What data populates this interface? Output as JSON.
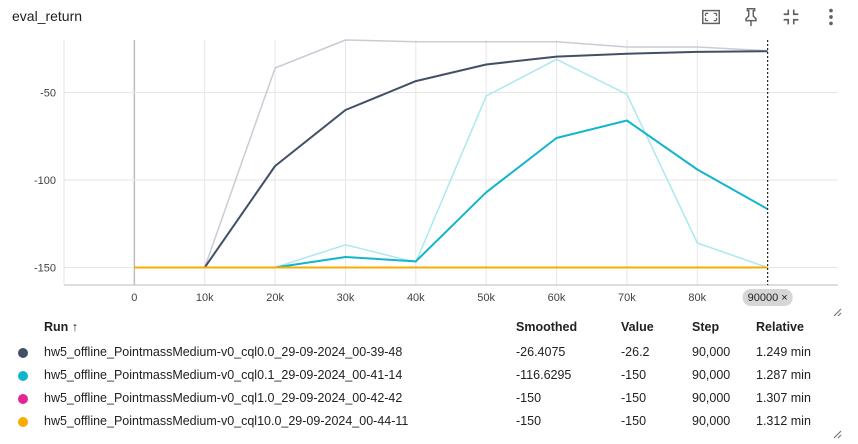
{
  "panel": {
    "title": "eval_return"
  },
  "toolbar": {
    "items": [
      {
        "icon": "fit-domain-icon"
      },
      {
        "icon": "pin-icon"
      },
      {
        "icon": "fullscreen-exit-icon"
      },
      {
        "icon": "more-vert-icon"
      }
    ]
  },
  "chart_data": {
    "type": "line",
    "x_ticks": [
      "0",
      "10k",
      "20k",
      "30k",
      "40k",
      "50k",
      "60k",
      "70k",
      "80k"
    ],
    "y_ticks": [
      "-50",
      "-100",
      "-150"
    ],
    "y_tick_values": [
      -50,
      -100,
      -150
    ],
    "xlim": [
      -10000,
      100000
    ],
    "ylim": [
      -160,
      -20
    ],
    "hover_x_label": "90000 ×",
    "hover_x": 90000,
    "colors": {
      "run0": "#425066",
      "run1": "#12b5cb",
      "run2": "#e52592",
      "run3": "#f9ab00"
    },
    "series": [
      {
        "color": "#c9ccd6",
        "width": 1.5,
        "x": [
          0,
          10000,
          20000,
          30000,
          40000,
          50000,
          60000,
          70000,
          80000,
          90000
        ],
        "y": [
          -150,
          -150,
          -36,
          -20,
          -21,
          -21,
          -21,
          -24,
          -24,
          -26.2
        ]
      },
      {
        "color": "#ace8f0",
        "width": 1.5,
        "x": [
          0,
          10000,
          20000,
          30000,
          40000,
          50000,
          60000,
          70000,
          80000,
          90000
        ],
        "y": [
          -150,
          -150,
          -150,
          -137,
          -147,
          -52,
          -31,
          -51,
          -136,
          -150
        ]
      },
      {
        "color": "#425066",
        "width": 2,
        "x": [
          0,
          10000,
          20000,
          30000,
          40000,
          50000,
          60000,
          70000,
          80000,
          90000
        ],
        "y": [
          -150,
          -150,
          -92,
          -60,
          -43.5,
          -34,
          -29.5,
          -27.8,
          -26.8,
          -26.4075
        ]
      },
      {
        "color": "#12b5cb",
        "width": 2,
        "x": [
          0,
          10000,
          20000,
          30000,
          40000,
          50000,
          60000,
          70000,
          80000,
          90000
        ],
        "y": [
          -150,
          -150,
          -150,
          -144,
          -146.5,
          -107,
          -76,
          -66,
          -94,
          -116.6295
        ]
      },
      {
        "color": "#f9ab00",
        "width": 2,
        "x": [
          0,
          10000,
          20000,
          30000,
          40000,
          50000,
          60000,
          70000,
          80000,
          90000
        ],
        "y": [
          -150,
          -150,
          -150,
          -150,
          -150,
          -150,
          -150,
          -150,
          -150,
          -150
        ]
      }
    ]
  },
  "table": {
    "headers": {
      "run": "Run ↑",
      "smoothed": "Smoothed",
      "value": "Value",
      "step": "Step",
      "relative": "Relative"
    },
    "rows": [
      {
        "color": "#425066",
        "run": "hw5_offline_PointmassMedium-v0_cql0.0_29-09-2024_00-39-48",
        "smoothed": "-26.4075",
        "value": "-26.2",
        "step": "90,000",
        "relative": "1.249 min"
      },
      {
        "color": "#12b5cb",
        "run": "hw5_offline_PointmassMedium-v0_cql0.1_29-09-2024_00-41-14",
        "smoothed": "-116.6295",
        "value": "-150",
        "step": "90,000",
        "relative": "1.287 min"
      },
      {
        "color": "#e52592",
        "run": "hw5_offline_PointmassMedium-v0_cql1.0_29-09-2024_00-42-42",
        "smoothed": "-150",
        "value": "-150",
        "step": "90,000",
        "relative": "1.307 min"
      },
      {
        "color": "#f9ab00",
        "run": "hw5_offline_PointmassMedium-v0_cql10.0_29-09-2024_00-44-11",
        "smoothed": "-150",
        "value": "-150",
        "step": "90,000",
        "relative": "1.312 min"
      }
    ]
  }
}
